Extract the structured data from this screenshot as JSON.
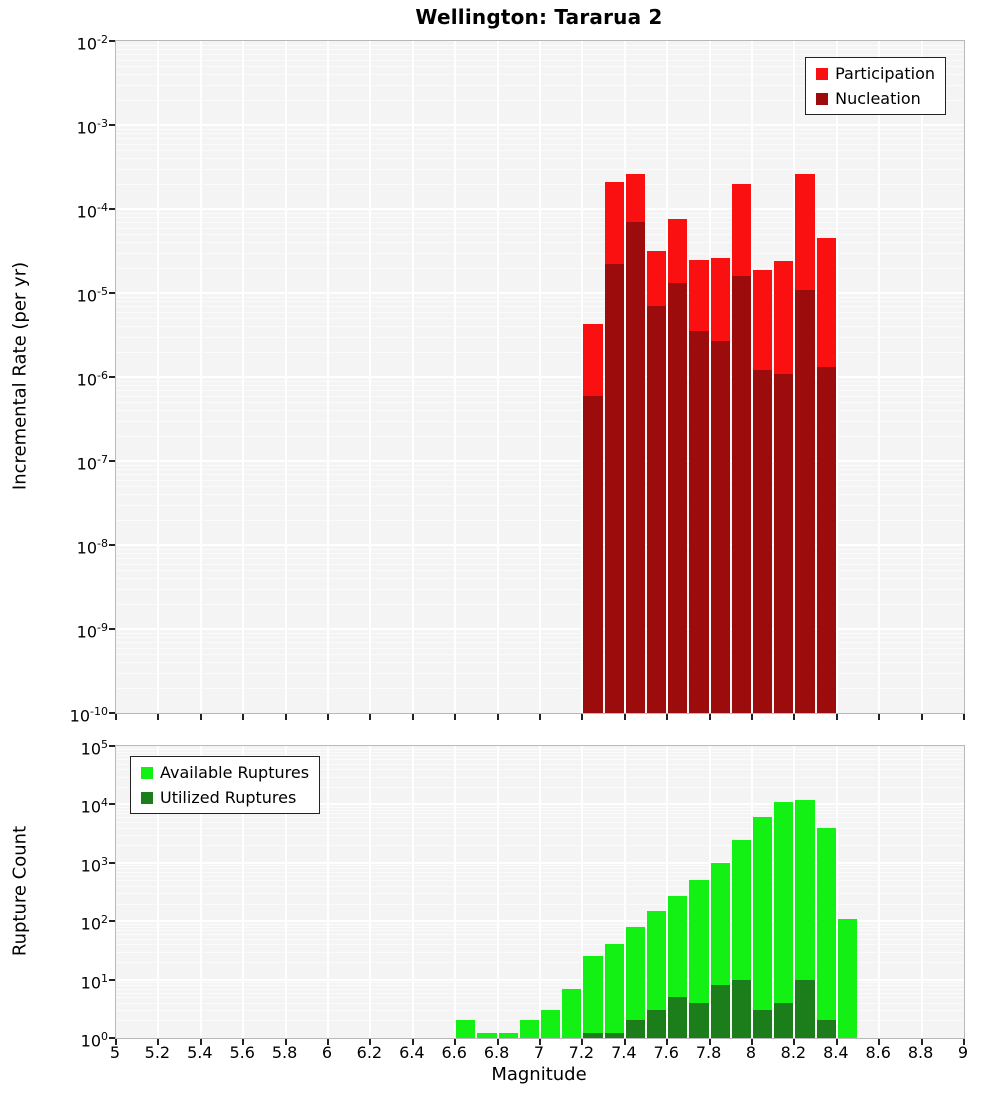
{
  "chart_data": [
    {
      "type": "bar",
      "title": "Wellington: Tararua 2",
      "ylabel": "Incremental Rate (per yr)",
      "x_range": [
        5,
        9
      ],
      "x_tick_step": 0.2,
      "y_log_range": [
        -10,
        -2
      ],
      "bin_width": 0.1,
      "grid": true,
      "legend_position": "top-right",
      "series": [
        {
          "name": "Participation",
          "color": "#fa1010",
          "x": [
            7.25,
            7.35,
            7.45,
            7.55,
            7.65,
            7.75,
            7.85,
            7.95,
            8.05,
            8.15,
            8.25,
            8.35
          ],
          "values": [
            4.3e-06,
            0.00021,
            0.00026,
            3.2e-05,
            7.5e-05,
            2.5e-05,
            2.6e-05,
            0.0002,
            1.9e-05,
            2.4e-05,
            0.00026,
            4.5e-05
          ]
        },
        {
          "name": "Nucleation",
          "color": "#9c0c0c",
          "x": [
            7.25,
            7.35,
            7.45,
            7.55,
            7.65,
            7.75,
            7.85,
            7.95,
            8.05,
            8.15,
            8.25,
            8.35
          ],
          "values": [
            6e-07,
            2.2e-05,
            7e-05,
            7e-06,
            1.3e-05,
            3.5e-06,
            2.7e-06,
            1.6e-05,
            1.2e-06,
            1.1e-06,
            1.1e-05,
            1.3e-06
          ]
        }
      ]
    },
    {
      "type": "bar",
      "ylabel": "Rupture Count",
      "xlabel": "Magnitude",
      "x_range": [
        5,
        9
      ],
      "x_tick_step": 0.2,
      "y_log_range": [
        0,
        5
      ],
      "bin_width": 0.1,
      "grid": true,
      "legend_position": "top-left",
      "series": [
        {
          "name": "Available Ruptures",
          "color": "#13f013",
          "x": [
            6.65,
            6.75,
            6.85,
            6.95,
            7.05,
            7.15,
            7.25,
            7.35,
            7.45,
            7.55,
            7.65,
            7.75,
            7.85,
            7.95,
            8.05,
            8.15,
            8.25,
            8.35,
            8.45
          ],
          "values": [
            2,
            1,
            1,
            2,
            3,
            7,
            25,
            40,
            80,
            150,
            270,
            500,
            1000,
            2500,
            6000,
            11000,
            12000,
            4000,
            110
          ]
        },
        {
          "name": "Utilized Ruptures",
          "color": "#1b7e1b",
          "x": [
            7.25,
            7.35,
            7.45,
            7.55,
            7.65,
            7.75,
            7.85,
            7.95,
            8.05,
            8.15,
            8.25,
            8.35
          ],
          "values": [
            1,
            1,
            2,
            3,
            5,
            4,
            8,
            10,
            3,
            4,
            10,
            2
          ]
        }
      ]
    }
  ]
}
